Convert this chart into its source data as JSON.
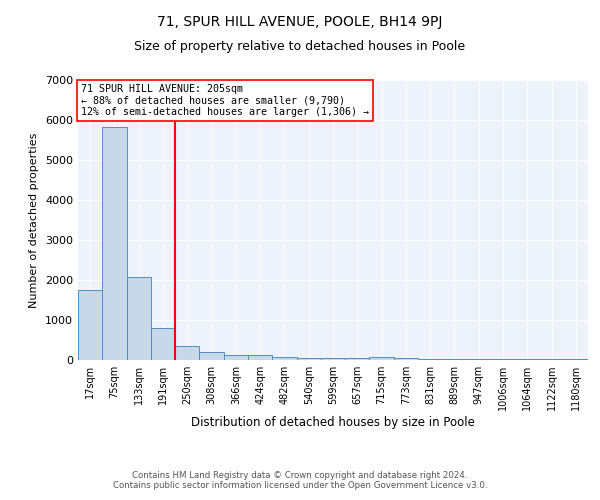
{
  "title": "71, SPUR HILL AVENUE, POOLE, BH14 9PJ",
  "subtitle": "Size of property relative to detached houses in Poole",
  "xlabel": "Distribution of detached houses by size in Poole",
  "ylabel": "Number of detached properties",
  "categories": [
    "17sqm",
    "75sqm",
    "133sqm",
    "191sqm",
    "250sqm",
    "308sqm",
    "366sqm",
    "424sqm",
    "482sqm",
    "540sqm",
    "599sqm",
    "657sqm",
    "715sqm",
    "773sqm",
    "831sqm",
    "889sqm",
    "947sqm",
    "1006sqm",
    "1064sqm",
    "1122sqm",
    "1180sqm"
  ],
  "values": [
    1760,
    5820,
    2080,
    810,
    350,
    200,
    135,
    115,
    80,
    55,
    45,
    40,
    70,
    40,
    35,
    30,
    30,
    25,
    20,
    20,
    20
  ],
  "bar_color": "#c8d8e8",
  "bar_edge_color": "#5090c0",
  "vline_color": "red",
  "vline_x": 3.5,
  "annotation_text": "71 SPUR HILL AVENUE: 205sqm\n← 88% of detached houses are smaller (9,790)\n12% of semi-detached houses are larger (1,306) →",
  "annotation_box_color": "white",
  "annotation_box_edge": "red",
  "ylim": [
    0,
    7000
  ],
  "yticks": [
    0,
    1000,
    2000,
    3000,
    4000,
    5000,
    6000,
    7000
  ],
  "bg_color": "#eef2fa",
  "footer": "Contains HM Land Registry data © Crown copyright and database right 2024.\nContains public sector information licensed under the Open Government Licence v3.0.",
  "title_fontsize": 10,
  "subtitle_fontsize": 9
}
